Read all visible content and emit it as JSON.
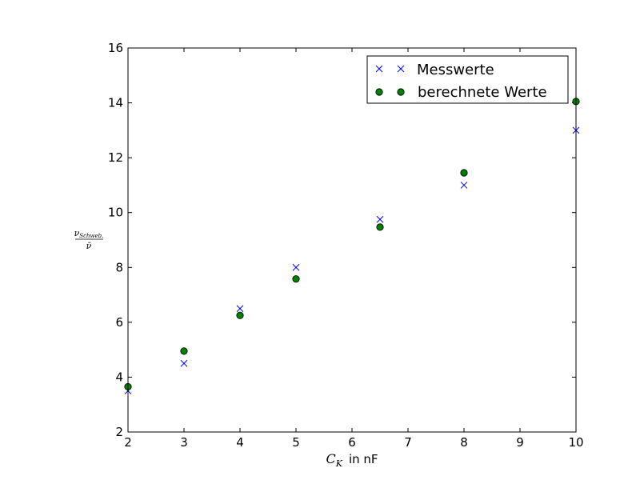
{
  "chart_data": {
    "type": "scatter",
    "xlim": [
      2,
      10
    ],
    "ylim": [
      2,
      16
    ],
    "xticks": [
      "2",
      "3",
      "4",
      "5",
      "6",
      "7",
      "8",
      "9",
      "10"
    ],
    "yticks": [
      "2",
      "4",
      "6",
      "8",
      "10",
      "12",
      "14",
      "16"
    ],
    "xlabel": {
      "symbol": "C",
      "subscript": "K",
      "text": "in nF"
    },
    "ylabel": {
      "numerator": "ν",
      "numerator_sub": "Schweb.",
      "denominator": "ν̄"
    },
    "grid": false,
    "legend_position": "top-right",
    "series": [
      {
        "name": "Messwerte",
        "marker": "x",
        "color": "#0000ff",
        "x": [
          2,
          3,
          4,
          5,
          6.5,
          8,
          10
        ],
        "y": [
          3.5,
          4.5,
          6.5,
          8.0,
          9.75,
          11.0,
          13.0
        ]
      },
      {
        "name": "berechnete Werte",
        "marker": "o",
        "color": "#007f00",
        "x": [
          2,
          3,
          4,
          5,
          6.5,
          8,
          10
        ],
        "y": [
          3.65,
          4.95,
          6.25,
          7.58,
          9.47,
          11.45,
          14.05
        ]
      }
    ]
  }
}
